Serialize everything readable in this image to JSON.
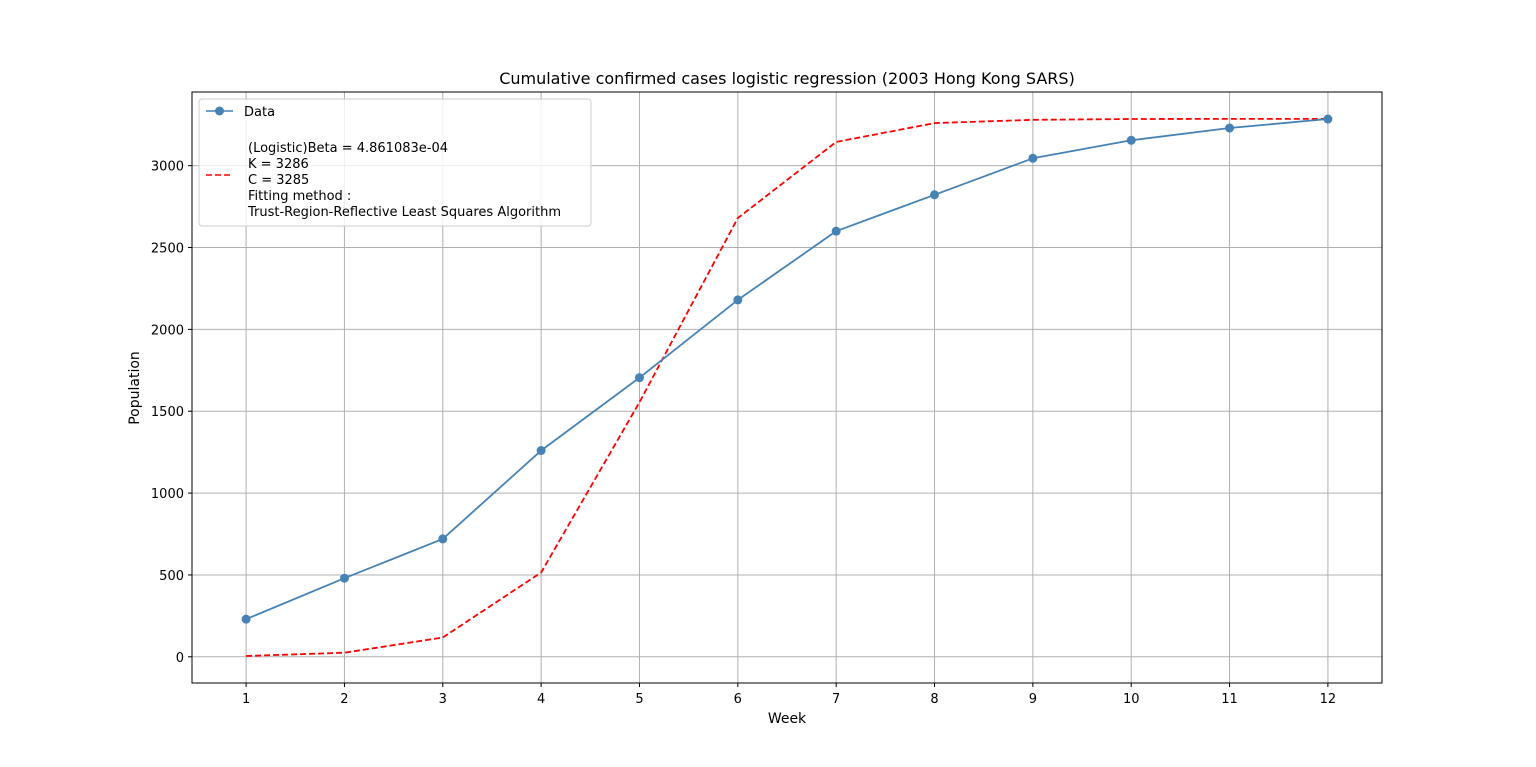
{
  "chart_data": {
    "type": "line",
    "title": "Cumulative confirmed cases logistic regression (2003 Hong Kong SARS)",
    "xlabel": "Week",
    "ylabel": "Population",
    "x": [
      1,
      2,
      3,
      4,
      5,
      6,
      7,
      8,
      9,
      10,
      11,
      12
    ],
    "xlim": [
      0.45,
      12.55
    ],
    "ylim": [
      -160,
      3450
    ],
    "xticks": [
      "1",
      "2",
      "3",
      "4",
      "5",
      "6",
      "7",
      "8",
      "9",
      "10",
      "11",
      "12"
    ],
    "yticks": [
      "0",
      "500",
      "1000",
      "1500",
      "2000",
      "2500",
      "3000"
    ],
    "grid": true,
    "legend_placement": "top-left",
    "series": [
      {
        "name": "Data",
        "style": "solid-with-markers",
        "color": "#4682b4",
        "values": [
          230,
          480,
          720,
          1260,
          1705,
          2180,
          2600,
          2822,
          3045,
          3155,
          3230,
          3285
        ]
      },
      {
        "name": "",
        "style": "dashed",
        "color": "#ff0000",
        "values": [
          5,
          25,
          118,
          515,
          1555,
          2680,
          3145,
          3260,
          3280,
          3285,
          3286,
          3286
        ]
      }
    ],
    "legend": {
      "data_label": "Data",
      "fit_label_lines": [
        "(Logistic)Beta = 4.861083e-04",
        "K = 3286",
        "C = 3285",
        "Fitting method :",
        "Trust-Region-Reflective Least Squares Algorithm"
      ]
    }
  }
}
